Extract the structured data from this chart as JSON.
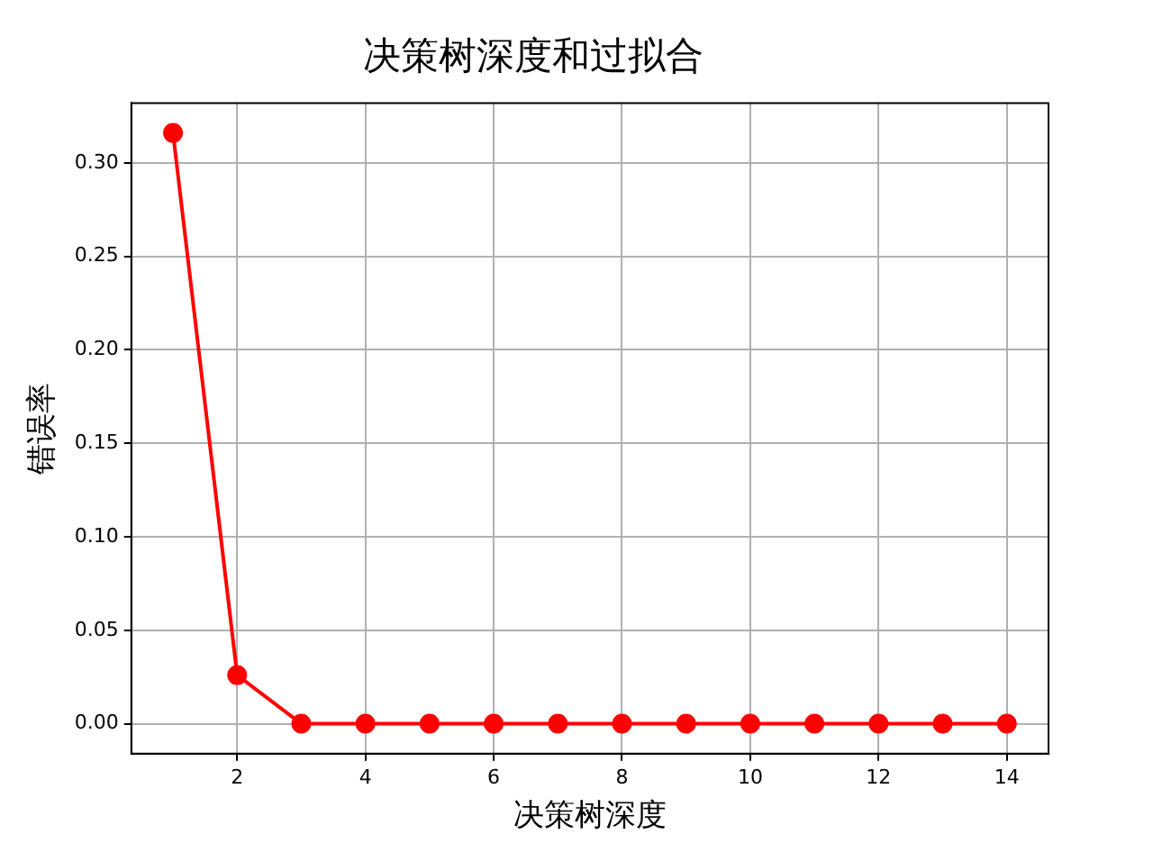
{
  "chart_data": {
    "type": "line",
    "title": "决策树深度和过拟合",
    "xlabel": "决策树深度",
    "ylabel": "错误率",
    "x": [
      1,
      2,
      3,
      4,
      5,
      6,
      7,
      8,
      9,
      10,
      11,
      12,
      13,
      14
    ],
    "series": [
      {
        "color": "#ff0000",
        "values": [
          0.316,
          0.026,
          0,
          0,
          0,
          0,
          0,
          0,
          0,
          0,
          0,
          0,
          0,
          0
        ]
      }
    ],
    "xlim": [
      0.35,
      14.65
    ],
    "xticks": [
      2,
      4,
      6,
      8,
      10,
      12,
      14
    ],
    "ylim": [
      -0.016,
      0.332
    ],
    "yticks": [
      {
        "value": 0,
        "label": "0.00"
      },
      {
        "value": 0.05,
        "label": "0.05"
      },
      {
        "value": 0.1,
        "label": "0.10"
      },
      {
        "value": 0.15,
        "label": "0.15"
      },
      {
        "value": 0.2,
        "label": "0.20"
      },
      {
        "value": 0.25,
        "label": "0.25"
      },
      {
        "value": 0.3,
        "label": "0.30"
      }
    ],
    "grid": true,
    "marker": "circle",
    "line_style": "solid",
    "legend": false
  }
}
